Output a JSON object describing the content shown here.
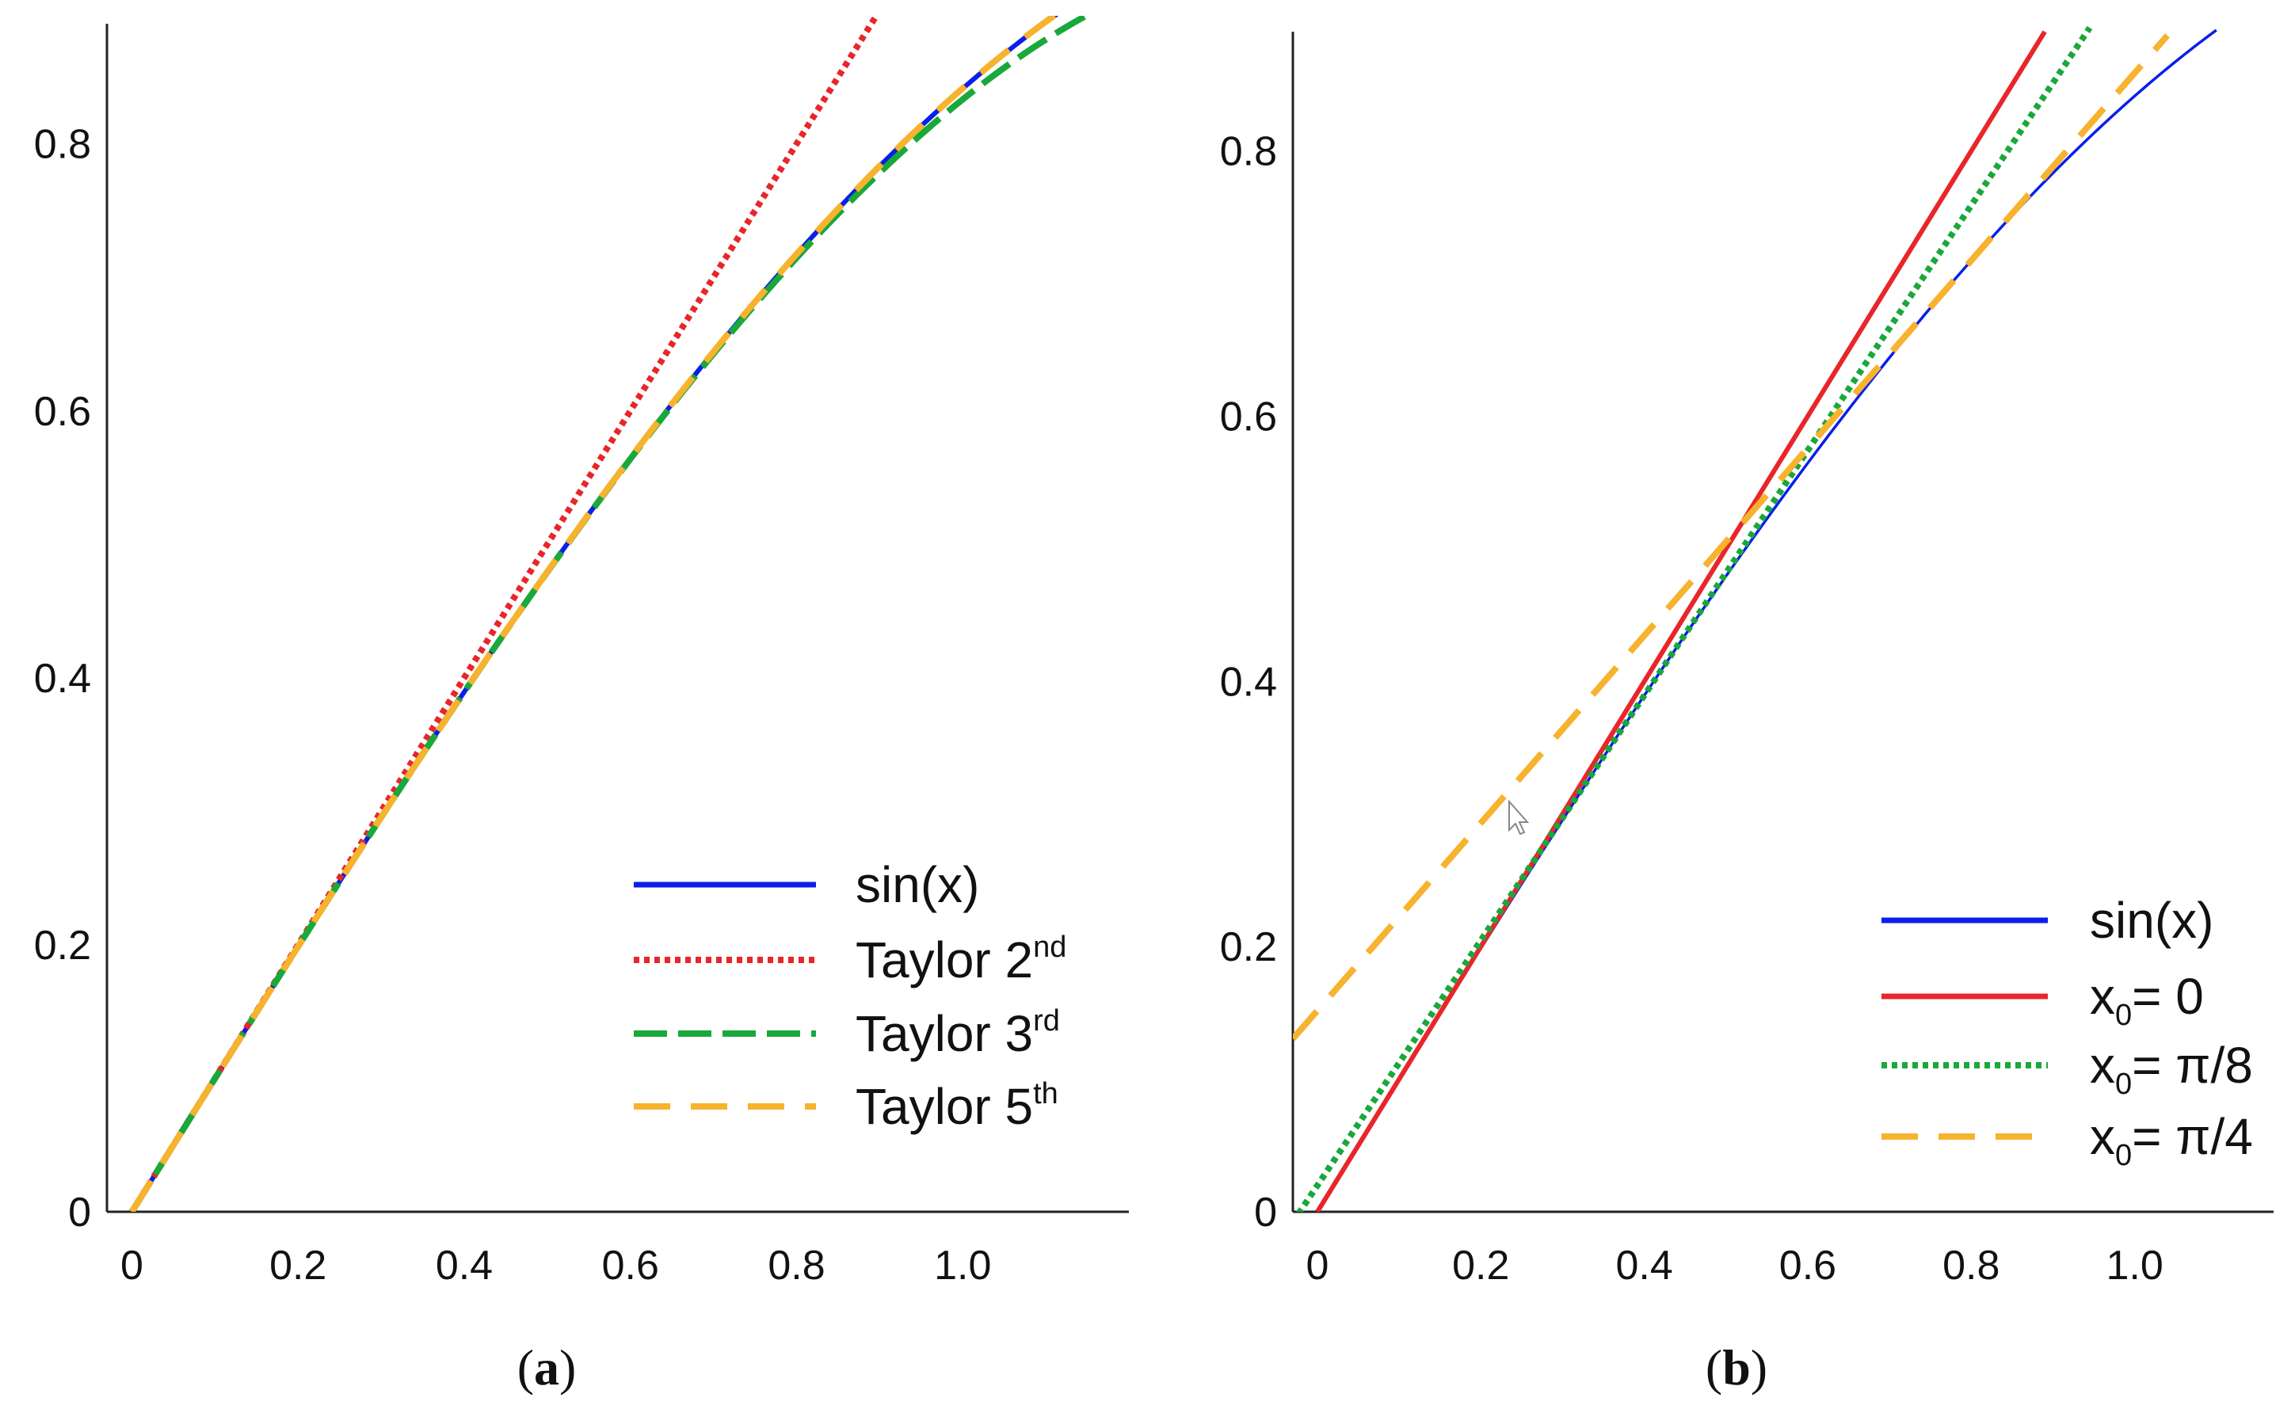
{
  "figure": {
    "captions": [
      {
        "open": "(",
        "letter": "a",
        "close": ")"
      },
      {
        "open": "(",
        "letter": "b",
        "close": ")"
      }
    ]
  },
  "colors": {
    "sin": "#0a1fe8",
    "red": "#e8262a",
    "green": "#19a83a",
    "orange": "#f7b22e"
  },
  "chart_data": [
    {
      "id": "a",
      "type": "line",
      "title": "",
      "xlabel": "",
      "ylabel": "",
      "xlim": [
        -0.03,
        1.2
      ],
      "ylim": [
        0,
        0.89
      ],
      "x_ticks": [
        0,
        0.2,
        0.4,
        0.6,
        0.8,
        1.0
      ],
      "x_tick_labels": [
        "0",
        "0.2",
        "0.4",
        "0.6",
        "0.8",
        "1.0"
      ],
      "y_ticks": [
        0,
        0.2,
        0.4,
        0.6,
        0.8
      ],
      "y_tick_labels": [
        "0",
        "0.2",
        "0.4",
        "0.6",
        "0.8"
      ],
      "legend_position": "bottom-right",
      "series": [
        {
          "name": "sin(x)",
          "legend_main": "sin(x)",
          "legend_sup": "",
          "legend_sub": "",
          "legend_tail": "",
          "function": "sin",
          "x_range": [
            0,
            1.12
          ],
          "color": "#0a1fe8",
          "style": "solid"
        },
        {
          "name": "Taylor 2nd",
          "legend_main": "Taylor 2",
          "legend_sup": "nd",
          "legend_sub": "",
          "legend_tail": "",
          "function": "taylor2",
          "x_range": [
            0,
            0.905
          ],
          "color": "#e8262a",
          "style": "dotted"
        },
        {
          "name": "Taylor 3rd",
          "legend_main": "Taylor 3",
          "legend_sup": "rd",
          "legend_sub": "",
          "legend_tail": "",
          "function": "taylor3",
          "x_range": [
            0,
            1.175
          ],
          "color": "#19a83a",
          "style": "dashed"
        },
        {
          "name": "Taylor 5th",
          "legend_main": "Taylor 5",
          "legend_sup": "th",
          "legend_sub": "",
          "legend_tail": "",
          "function": "taylor5",
          "x_range": [
            0,
            1.12
          ],
          "color": "#f7b22e",
          "style": "longdash"
        }
      ]
    },
    {
      "id": "b",
      "type": "line",
      "title": "",
      "xlabel": "",
      "ylabel": "",
      "xlim": [
        -0.03,
        1.17
      ],
      "ylim": [
        0,
        0.89
      ],
      "x_ticks": [
        0,
        0.2,
        0.4,
        0.6,
        0.8,
        1.0
      ],
      "x_tick_labels": [
        "0",
        "0.2",
        "0.4",
        "0.6",
        "0.8",
        "1.0"
      ],
      "y_ticks": [
        0,
        0.2,
        0.4,
        0.6,
        0.8
      ],
      "y_tick_labels": [
        "0",
        "0.2",
        "0.4",
        "0.6",
        "0.8"
      ],
      "legend_position": "bottom-right",
      "series": [
        {
          "name": "sin(x)",
          "legend_main": "sin(x)",
          "legend_sup": "",
          "legend_sub": "",
          "legend_tail": "",
          "function": "sin",
          "x_range": [
            0,
            1.1
          ],
          "color": "#0a1fe8",
          "style": "solid-thin"
        },
        {
          "name": "x0= 0",
          "legend_main": "x",
          "legend_sup": "",
          "legend_sub": "0",
          "legend_tail": "= 0",
          "function": "tangent",
          "x0": 0,
          "x_range": [
            0,
            0.89
          ],
          "color": "#e8262a",
          "style": "solid"
        },
        {
          "name": "x0= π/8",
          "legend_main": "x",
          "legend_sup": "",
          "legend_sub": "0",
          "legend_tail": "= π/8",
          "function": "tangent",
          "x0": 0.3927,
          "x_range": [
            -0.03,
            0.945
          ],
          "color": "#19a83a",
          "style": "dotted"
        },
        {
          "name": "x0= π/4",
          "legend_main": "x",
          "legend_sup": "",
          "legend_sub": "0",
          "legend_tail": "= π/4",
          "function": "tangent",
          "x0": 0.7854,
          "x_range": [
            -0.03,
            1.04
          ],
          "color": "#f7b22e",
          "style": "longdash"
        }
      ]
    }
  ]
}
